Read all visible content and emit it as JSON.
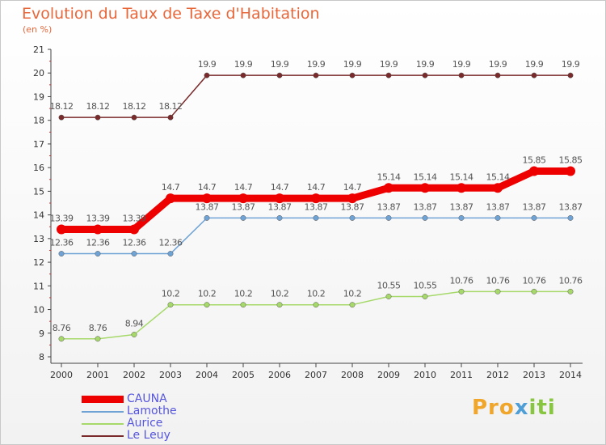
{
  "title": "Evolution du Taux de Taxe d'Habitation",
  "unit": "(en %)",
  "logo": {
    "part1": "Pro",
    "part2": "x",
    "part3": "iti"
  },
  "chart_data": {
    "type": "line",
    "title": "Evolution du Taux de Taxe d'Habitation",
    "ylabel": "(en %)",
    "xlabel": "",
    "ylim": [
      8,
      21
    ],
    "yticks": [
      8,
      9,
      10,
      11,
      12,
      13,
      14,
      15,
      16,
      17,
      18,
      19,
      20,
      21
    ],
    "categories": [
      "2000",
      "2001",
      "2002",
      "2003",
      "2004",
      "2005",
      "2006",
      "2007",
      "2008",
      "2009",
      "2010",
      "2011",
      "2012",
      "2013",
      "2014"
    ],
    "grid": false,
    "legend_position": "bottom-left",
    "series": [
      {
        "name": "CAUNA",
        "color": "#ee0000",
        "width": 9,
        "values": [
          13.39,
          13.39,
          13.39,
          14.7,
          14.7,
          14.7,
          14.7,
          14.7,
          14.7,
          15.14,
          15.14,
          15.14,
          15.14,
          15.85,
          15.85
        ],
        "labels": [
          "13.39",
          "13.39",
          "13.39",
          "14.7",
          "14.7",
          "14.7",
          "14.7",
          "14.7",
          "14.7",
          "15.14",
          "15.14",
          "15.14",
          "15.14",
          "15.85",
          "15.85"
        ]
      },
      {
        "name": "Lamothe",
        "color": "#6fa3d6",
        "width": 1.5,
        "values": [
          12.36,
          12.36,
          12.36,
          12.36,
          13.87,
          13.87,
          13.87,
          13.87,
          13.87,
          13.87,
          13.87,
          13.87,
          13.87,
          13.87,
          13.87
        ],
        "labels": [
          "12.36",
          "12.36",
          "12.36",
          "12.36",
          "13.87",
          "13.87",
          "13.87",
          "13.87",
          "13.87",
          "13.87",
          "13.87",
          "13.87",
          "13.87",
          "13.87",
          "13.87"
        ]
      },
      {
        "name": "Aurice",
        "color": "#a6d96a",
        "width": 1.5,
        "values": [
          8.76,
          8.76,
          8.94,
          10.2,
          10.2,
          10.2,
          10.2,
          10.2,
          10.2,
          10.55,
          10.55,
          10.76,
          10.76,
          10.76,
          10.76
        ],
        "labels": [
          "8.76",
          "8.76",
          "8.94",
          "10.2",
          "10.2",
          "10.2",
          "10.2",
          "10.2",
          "10.2",
          "10.55",
          "10.55",
          "10.76",
          "10.76",
          "10.76",
          "10.76"
        ]
      },
      {
        "name": "Le Leuy",
        "color": "#7a2a2a",
        "width": 1.5,
        "values": [
          18.12,
          18.12,
          18.12,
          18.12,
          19.9,
          19.9,
          19.9,
          19.9,
          19.9,
          19.9,
          19.9,
          19.9,
          19.9,
          19.9,
          19.9
        ],
        "labels": [
          "18.12",
          "18.12",
          "18.12",
          "18.12",
          "19.9",
          "19.9",
          "19.9",
          "19.9",
          "19.9",
          "19.9",
          "19.9",
          "19.9",
          "19.9",
          "19.9",
          "19.9"
        ]
      }
    ]
  }
}
